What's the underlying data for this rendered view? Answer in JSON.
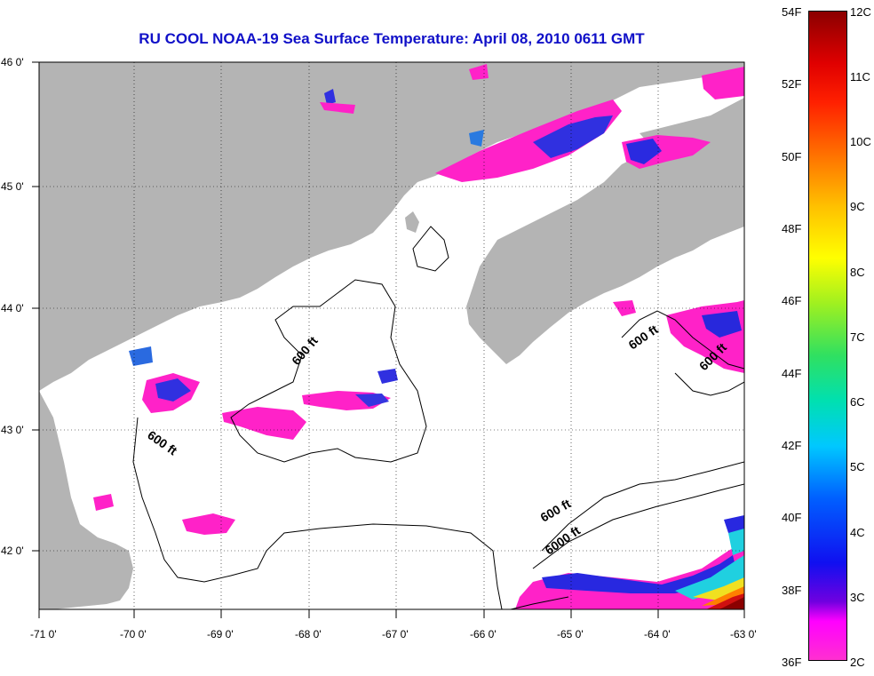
{
  "title": "RU COOL  NOAA-19  Sea Surface Temperature:  April 08, 2010 0611 GMT",
  "map": {
    "lon_labels": [
      "-71 0'",
      "-70 0'",
      "-69 0'",
      "-68 0'",
      "-67 0'",
      "-66 0'",
      "-65 0'",
      "-64 0'",
      "-63 0'"
    ],
    "lat_labels": [
      "46 0'",
      "45 0'",
      "44 0'",
      "43 0'",
      "42 0'"
    ],
    "contour_labels": [
      "600 ft",
      "600 ft",
      "600 ft",
      "600 ft",
      "600 ft",
      "6000 ft"
    ],
    "colors": {
      "land": "#b4b4b4",
      "water": "#ffffff",
      "cold_magenta": "#ff22c8",
      "cold_blue": "#2020e6",
      "warm_red": "#8b0000"
    }
  },
  "colorbar": {
    "f_labels": [
      "54F",
      "52F",
      "50F",
      "48F",
      "46F",
      "44F",
      "42F",
      "40F",
      "38F",
      "36F"
    ],
    "c_labels": [
      "12C",
      "11C",
      "10C",
      "9C",
      "8C",
      "7C",
      "6C",
      "5C",
      "4C",
      "3C",
      "2C"
    ],
    "range_f": [
      36,
      54
    ],
    "range_c": [
      2,
      12
    ]
  }
}
